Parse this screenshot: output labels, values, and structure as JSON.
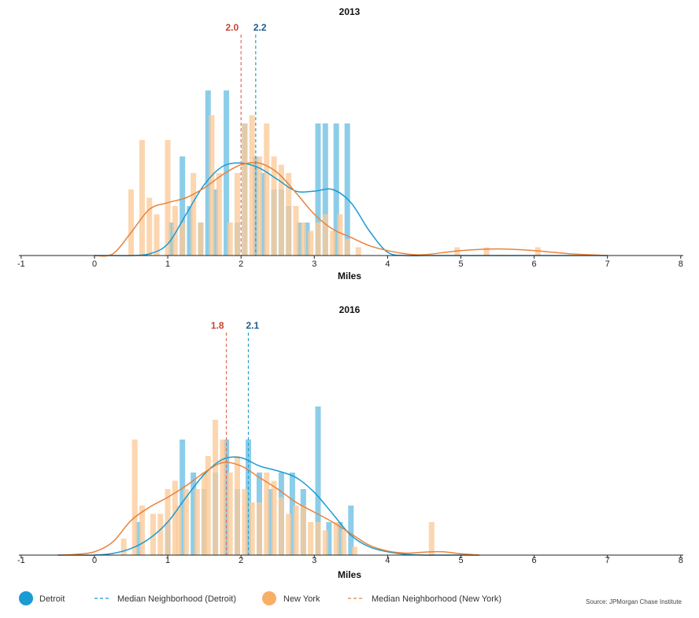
{
  "legend": {
    "detroit": "Detroit",
    "median_detroit": "Median Neighborhood (Detroit)",
    "new_york": "New York",
    "median_new_york": "Median Neighborhood (New York)"
  },
  "source": "Source: JPMorgan Chase Institute",
  "colors": {
    "detroit_bar": "#8ccde9",
    "detroit_line": "#1a9bd2",
    "ny_bar": "#fbcb98",
    "ny_line": "#e8823a",
    "median_detroit_label": "#1c5c8a",
    "median_ny_label": "#c9432e"
  },
  "chart_data": [
    {
      "type": "bar",
      "title": "2013",
      "xlabel": "Miles",
      "ylabel": "",
      "xlim": [
        -1,
        8
      ],
      "xticks": [
        "-1",
        "0",
        "1",
        "2",
        "3",
        "4",
        "5",
        "6",
        "7",
        "8"
      ],
      "medians": {
        "detroit": {
          "value": 2.2,
          "label": "2.2"
        },
        "new_york": {
          "value": 2.0,
          "label": "2.0"
        }
      },
      "series": [
        {
          "name": "Detroit",
          "x": [
            1.05,
            1.2,
            1.3,
            1.45,
            1.55,
            1.65,
            1.8,
            1.95,
            2.05,
            2.2,
            2.3,
            2.45,
            2.55,
            2.65,
            2.8,
            2.9,
            3.05,
            3.15,
            3.3,
            3.45
          ],
          "values": [
            2,
            6,
            3,
            2,
            10,
            4,
            10,
            2,
            8,
            6,
            5,
            4,
            4,
            3,
            2,
            2,
            8,
            8,
            8,
            8
          ]
        },
        {
          "name": "New York",
          "x": [
            0.5,
            0.65,
            0.75,
            0.85,
            1.0,
            1.1,
            1.2,
            1.35,
            1.45,
            1.6,
            1.7,
            1.85,
            1.95,
            2.05,
            2.15,
            2.25,
            2.35,
            2.45,
            2.55,
            2.65,
            2.75,
            2.85,
            2.95,
            3.05,
            3.15,
            3.25,
            3.35,
            3.45,
            3.6,
            4.95,
            5.35,
            6.05
          ],
          "values": [
            4,
            7,
            3.5,
            2.5,
            7,
            3,
            2,
            5,
            2,
            8.5,
            5,
            2,
            5,
            8,
            8.5,
            6,
            8,
            6,
            5.5,
            5,
            3,
            2,
            1.5,
            2,
            2.5,
            1.5,
            2.5,
            1,
            0.5,
            0.5,
            0.5,
            0.5
          ]
        }
      ],
      "density": {
        "x": [
          0.0,
          0.25,
          0.5,
          0.75,
          1.0,
          1.25,
          1.5,
          1.75,
          2.0,
          2.25,
          2.5,
          2.75,
          3.0,
          3.25,
          3.5,
          3.75,
          4.0,
          4.25,
          4.5,
          5.0,
          5.5,
          6.0,
          6.5,
          7.0
        ],
        "detroit": [
          0,
          0,
          0,
          0.1,
          0.7,
          2.5,
          4.3,
          5.4,
          5.6,
          5.3,
          4.6,
          3.9,
          3.9,
          4.0,
          3.2,
          1.5,
          0.2,
          0,
          0,
          0,
          0,
          0,
          0,
          0
        ],
        "new_york": [
          0,
          0.1,
          1.4,
          2.8,
          3.2,
          3.5,
          4.1,
          4.9,
          5.5,
          5.6,
          5.0,
          3.8,
          2.5,
          1.6,
          1.1,
          0.6,
          0.3,
          0.1,
          0.05,
          0.3,
          0.4,
          0.3,
          0.1,
          0
        ]
      }
    },
    {
      "type": "bar",
      "title": "2016",
      "xlabel": "Miles",
      "ylabel": "",
      "xlim": [
        -1,
        8
      ],
      "xticks": [
        "-1",
        "0",
        "1",
        "2",
        "3",
        "4",
        "5",
        "6",
        "7",
        "8"
      ],
      "medians": {
        "detroit": {
          "value": 2.1,
          "label": "2.1"
        },
        "new_york": {
          "value": 1.8,
          "label": "1.8"
        }
      },
      "series": [
        {
          "name": "Detroit",
          "x": [
            0.6,
            1.0,
            1.2,
            1.35,
            1.5,
            1.65,
            1.8,
            1.95,
            2.1,
            2.25,
            2.4,
            2.55,
            2.7,
            2.85,
            3.05,
            3.2,
            3.35,
            3.5
          ],
          "values": [
            2,
            2,
            7,
            5,
            4,
            5,
            7,
            4,
            7,
            5,
            4,
            5,
            5,
            4,
            9,
            2,
            2,
            3
          ]
        },
        {
          "name": "New York",
          "x": [
            0.4,
            0.55,
            0.65,
            0.8,
            0.9,
            1.0,
            1.1,
            1.15,
            1.25,
            1.4,
            1.5,
            1.55,
            1.65,
            1.75,
            1.85,
            1.95,
            2.05,
            2.15,
            2.25,
            2.35,
            2.45,
            2.55,
            2.65,
            2.75,
            2.85,
            2.95,
            3.05,
            3.15,
            3.3,
            3.4,
            3.55,
            4.6
          ],
          "values": [
            1,
            7,
            3,
            2.5,
            2.5,
            4,
            4.5,
            3,
            4,
            4,
            5,
            6,
            8.2,
            7,
            5,
            6,
            4,
            3.2,
            3.2,
            5,
            4.5,
            3.5,
            2.5,
            3,
            3,
            2,
            2,
            1.5,
            2,
            1.5,
            0.5,
            2
          ]
        }
      ],
      "density": {
        "x": [
          -0.5,
          -0.25,
          0.0,
          0.25,
          0.5,
          0.75,
          1.0,
          1.25,
          1.5,
          1.75,
          2.0,
          2.25,
          2.5,
          2.75,
          3.0,
          3.25,
          3.5,
          3.75,
          4.0,
          4.25,
          4.5,
          4.75,
          5.0,
          5.25
        ],
        "detroit": [
          0,
          0,
          0,
          0.1,
          0.4,
          1.0,
          2.0,
          3.5,
          4.9,
          5.8,
          5.9,
          5.4,
          5.1,
          4.7,
          3.8,
          2.5,
          1.2,
          0.5,
          0.2,
          0.05,
          0,
          0,
          0,
          0
        ],
        "new_york": [
          0,
          0.05,
          0.2,
          0.8,
          2.1,
          2.9,
          3.5,
          4.2,
          5.0,
          5.6,
          5.4,
          4.7,
          4.0,
          3.2,
          2.6,
          2.0,
          1.3,
          0.6,
          0.25,
          0.12,
          0.18,
          0.2,
          0.08,
          0
        ]
      }
    }
  ]
}
